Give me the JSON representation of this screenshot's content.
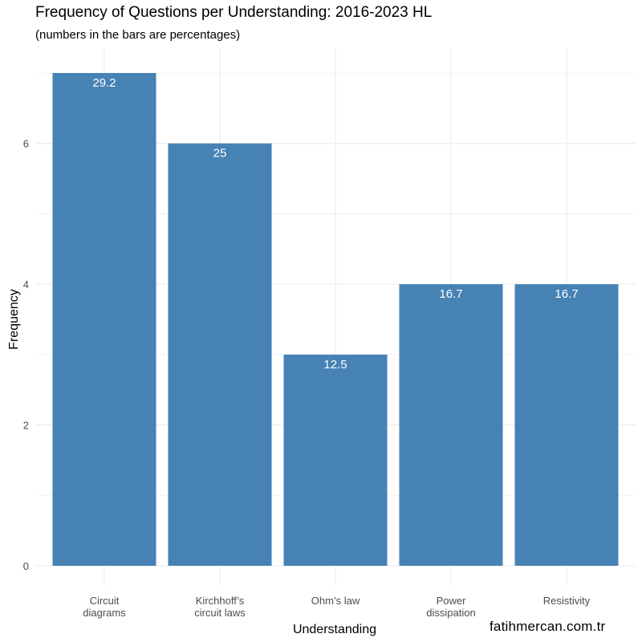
{
  "title": "Frequency of Questions per Understanding: 2016-2023 HL",
  "subtitle": "(numbers in the bars are percentages)",
  "caption": "fatihmercan.com.tr",
  "colors": {
    "bar": "#4682B4",
    "grid": "#EBEBEB",
    "bar_label": "#FFFFFF",
    "tick_label": "#4D4D4D"
  },
  "chart_data": {
    "type": "bar",
    "xlabel": "Understanding",
    "ylabel": "Frequency",
    "categories": [
      [
        "Circuit",
        "diagrams"
      ],
      [
        "Kirchhoff’s",
        "circuit laws"
      ],
      [
        "Ohm’s law"
      ],
      [
        "Power",
        "dissipation"
      ],
      [
        "Resistivity"
      ]
    ],
    "values": [
      7,
      6,
      3,
      4,
      4
    ],
    "bar_labels": [
      "29.2",
      "25",
      "12.5",
      "16.7",
      "16.7"
    ],
    "ylim": [
      0,
      7
    ],
    "yticks": [
      0,
      2,
      4,
      6
    ],
    "grid": true,
    "legend": "none"
  }
}
